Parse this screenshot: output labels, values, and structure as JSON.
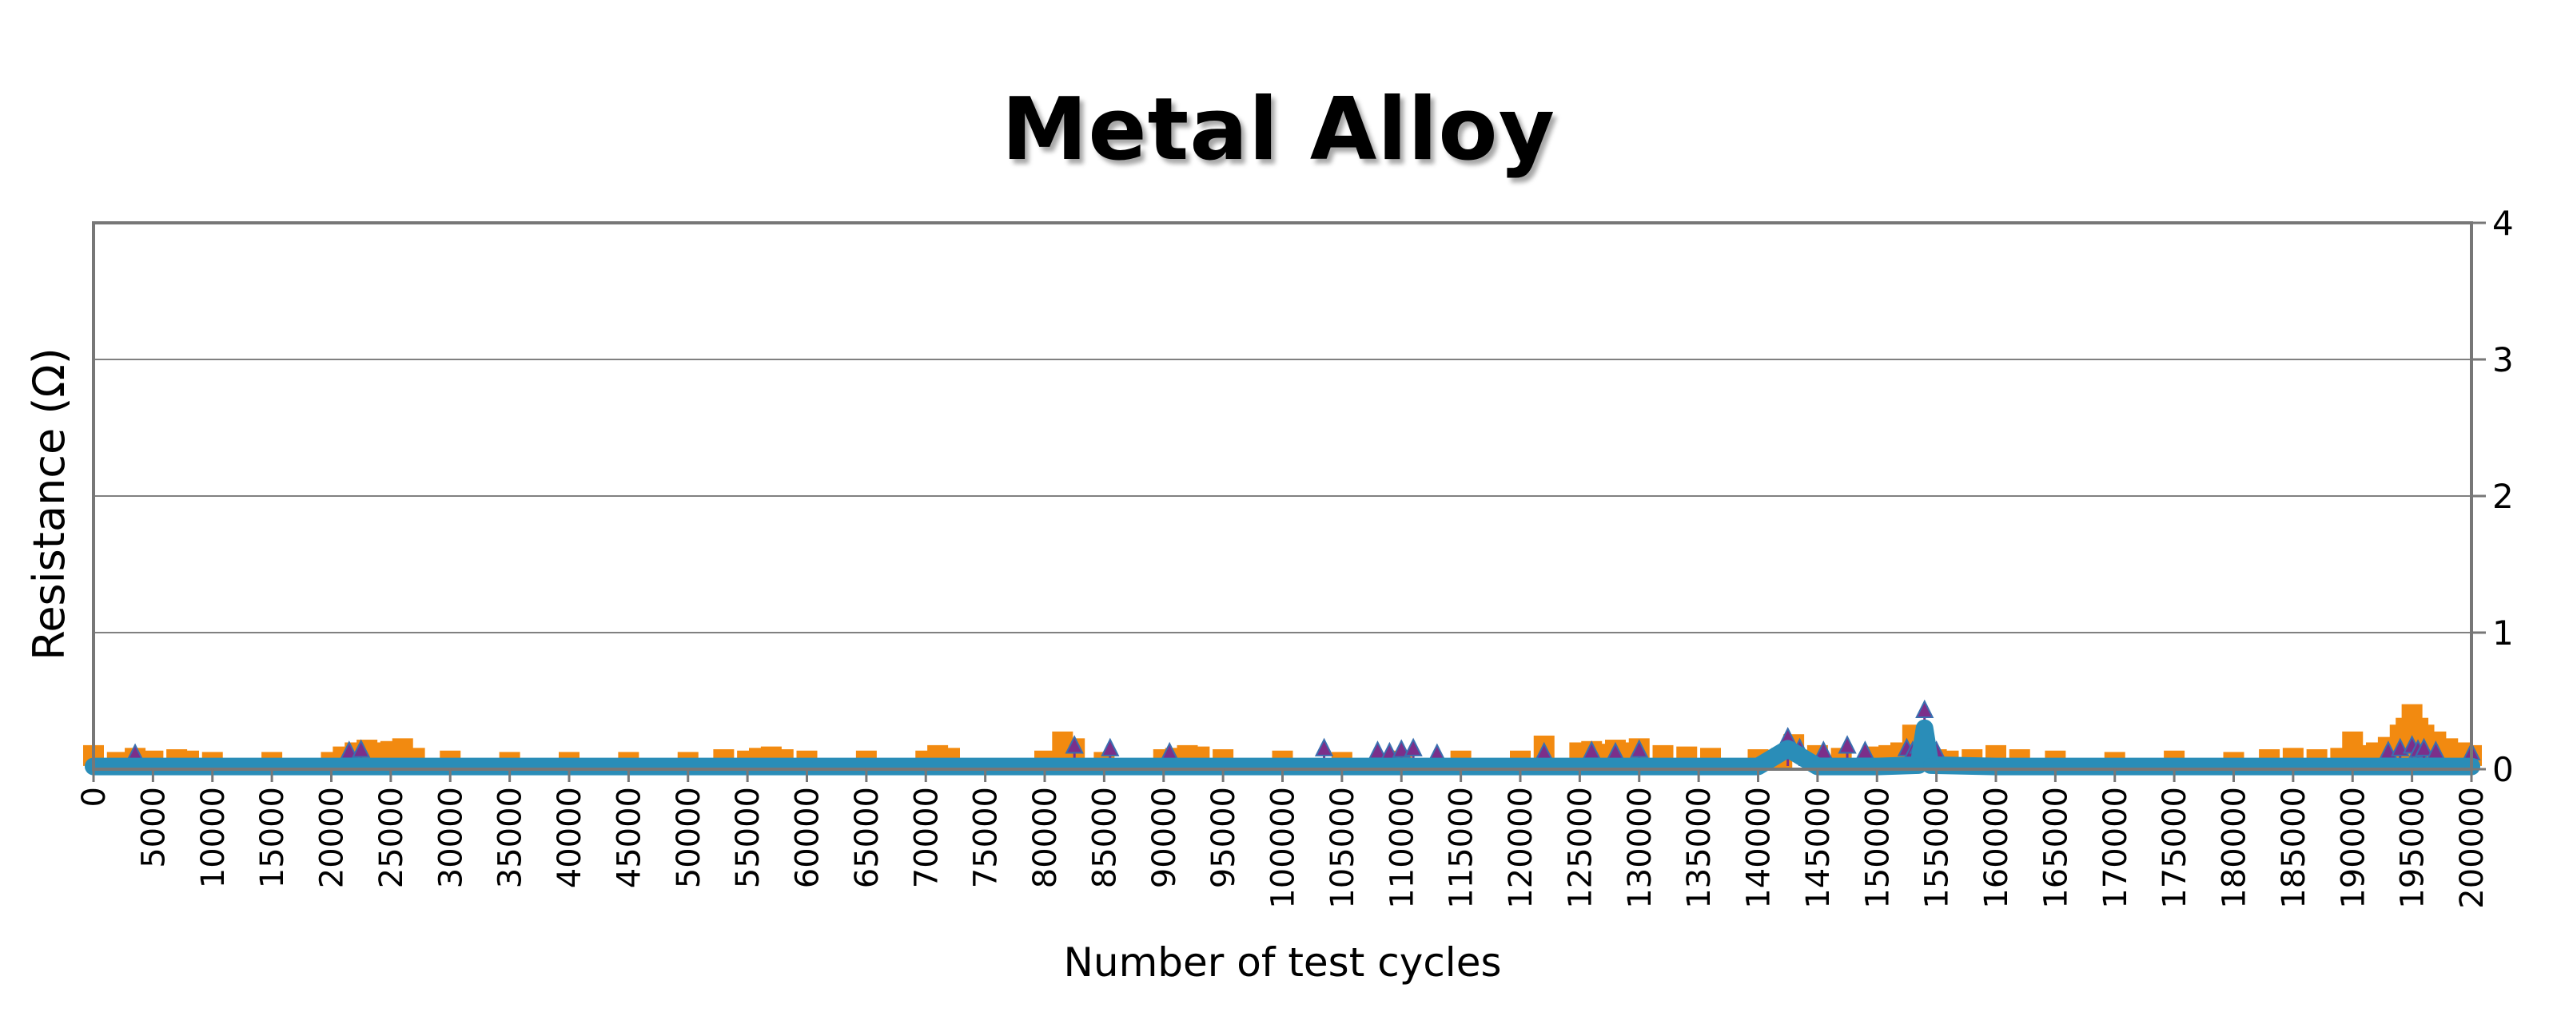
{
  "chart_data": {
    "type": "scatter",
    "title": "Metal Alloy",
    "xlabel": "Number of test cycles",
    "ylabel": "Resistance (Ω)",
    "xlim": [
      0,
      200000
    ],
    "ylim": [
      0,
      4
    ],
    "x_ticks": [
      0,
      5000,
      10000,
      15000,
      20000,
      25000,
      30000,
      35000,
      40000,
      45000,
      50000,
      55000,
      60000,
      65000,
      70000,
      75000,
      80000,
      85000,
      90000,
      95000,
      100000,
      105000,
      110000,
      115000,
      120000,
      125000,
      130000,
      135000,
      140000,
      145000,
      150000,
      155000,
      160000,
      165000,
      170000,
      175000,
      180000,
      185000,
      190000,
      195000,
      200000
    ],
    "y_ticks": [
      0,
      1,
      2,
      3,
      4
    ],
    "y_axis_side": "right",
    "grid": "horizontal",
    "legend": "none",
    "series": [
      {
        "marker": "square",
        "color": "#f28a10",
        "x": [
          0,
          2000,
          3500,
          5000,
          7000,
          8000,
          10000,
          15000,
          20000,
          21000,
          22000,
          22500,
          23000,
          23500,
          24000,
          25000,
          26000,
          27000,
          30000,
          35000,
          40000,
          45000,
          50000,
          53000,
          55000,
          56000,
          57000,
          58000,
          60000,
          65000,
          70000,
          71000,
          72000,
          80000,
          81500,
          82500,
          85000,
          90000,
          91000,
          92000,
          93000,
          95000,
          100000,
          105000,
          110000,
          115000,
          120000,
          122000,
          125000,
          126000,
          127000,
          128000,
          129000,
          130000,
          132000,
          134000,
          136000,
          140000,
          142000,
          143000,
          145000,
          147000,
          150000,
          151000,
          152000,
          153000,
          154000,
          155000,
          156000,
          158000,
          160000,
          162000,
          165000,
          170000,
          175000,
          180000,
          183000,
          185000,
          187000,
          189000,
          190000,
          191000,
          192000,
          193000,
          194000,
          194500,
          195000,
          195500,
          196000,
          197000,
          198000,
          199000,
          200000
        ],
        "values": [
          0.1,
          0.05,
          0.08,
          0.06,
          0.07,
          0.06,
          0.05,
          0.05,
          0.05,
          0.09,
          0.12,
          0.1,
          0.14,
          0.11,
          0.12,
          0.13,
          0.15,
          0.08,
          0.06,
          0.05,
          0.05,
          0.05,
          0.05,
          0.07,
          0.06,
          0.08,
          0.09,
          0.07,
          0.06,
          0.06,
          0.06,
          0.1,
          0.08,
          0.06,
          0.2,
          0.15,
          0.05,
          0.07,
          0.08,
          0.1,
          0.09,
          0.07,
          0.06,
          0.05,
          0.06,
          0.06,
          0.06,
          0.17,
          0.12,
          0.13,
          0.11,
          0.14,
          0.12,
          0.15,
          0.1,
          0.09,
          0.08,
          0.07,
          0.08,
          0.18,
          0.1,
          0.08,
          0.09,
          0.1,
          0.12,
          0.25,
          0.08,
          0.07,
          0.06,
          0.07,
          0.1,
          0.07,
          0.06,
          0.05,
          0.06,
          0.05,
          0.07,
          0.08,
          0.07,
          0.08,
          0.2,
          0.1,
          0.12,
          0.16,
          0.25,
          0.3,
          0.4,
          0.3,
          0.25,
          0.2,
          0.15,
          0.12,
          0.1
        ]
      },
      {
        "marker": "triangle",
        "color": "#7b2f8a",
        "x": [
          3500,
          21500,
          22500,
          82500,
          85500,
          90500,
          103500,
          108000,
          109000,
          110000,
          111000,
          113000,
          122000,
          126000,
          128000,
          130000,
          142500,
          143500,
          145500,
          147500,
          149000,
          152500,
          153000,
          153500,
          154000,
          154500,
          155000,
          193000,
          194000,
          195000,
          195500,
          196000,
          197000,
          200000
        ],
        "values": [
          0.06,
          0.08,
          0.09,
          0.12,
          0.1,
          0.07,
          0.1,
          0.08,
          0.07,
          0.09,
          0.1,
          0.06,
          0.07,
          0.08,
          0.07,
          0.09,
          0.18,
          0.1,
          0.08,
          0.12,
          0.08,
          0.1,
          0.08,
          0.12,
          0.38,
          0.1,
          0.08,
          0.08,
          0.1,
          0.12,
          0.09,
          0.1,
          0.08,
          0.07
        ]
      },
      {
        "marker": "line",
        "color": "#2a8db8",
        "x": [
          0,
          10000,
          20000,
          30000,
          40000,
          50000,
          60000,
          70000,
          80000,
          90000,
          100000,
          110000,
          120000,
          130000,
          140000,
          142500,
          145000,
          150000,
          153500,
          154000,
          154500,
          160000,
          170000,
          180000,
          190000,
          200000
        ],
        "values": [
          0.02,
          0.02,
          0.02,
          0.02,
          0.02,
          0.02,
          0.02,
          0.02,
          0.02,
          0.02,
          0.02,
          0.02,
          0.02,
          0.02,
          0.02,
          0.15,
          0.02,
          0.02,
          0.03,
          0.3,
          0.03,
          0.02,
          0.02,
          0.02,
          0.02,
          0.02
        ]
      }
    ]
  }
}
